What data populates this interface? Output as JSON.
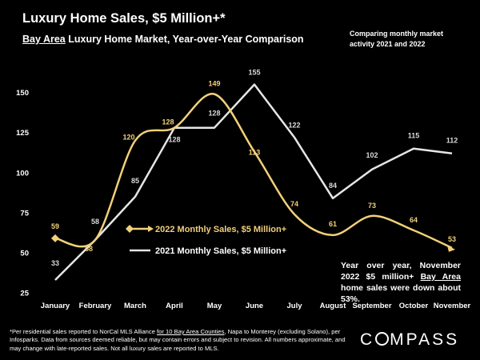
{
  "header": {
    "title": "Luxury Home Sales, $5 Million+*",
    "subtitle_region": "Bay Area",
    "subtitle_rest": " Luxury Home Market, Year-over-Year Comparison",
    "corner_note": "Comparing monthly market activity 2021 and 2022"
  },
  "chart_data": {
    "type": "line",
    "categories": [
      "January",
      "February",
      "March",
      "April",
      "May",
      "June",
      "July",
      "August",
      "September",
      "October",
      "November"
    ],
    "ylim": [
      25,
      160
    ],
    "yticks": [
      25,
      50,
      75,
      100,
      125,
      150
    ],
    "grid": false,
    "series": [
      {
        "name": "2022 Monthly Sales, $5 Million+",
        "color": "#F2D07A",
        "values": [
          59,
          58,
          120,
          128,
          149,
          113,
          74,
          61,
          73,
          64,
          53
        ]
      },
      {
        "name": "2021 Monthly Sales, $5 Million+",
        "color": "#E6E6E6",
        "values": [
          33,
          58,
          85,
          128,
          128,
          155,
          122,
          84,
          102,
          115,
          112
        ]
      }
    ]
  },
  "yoy_note": {
    "pre": "Year over year, November 2022 $5 million+ ",
    "region": "Bay Area",
    "post": " home sales were down about 53%."
  },
  "footnote": {
    "pre": "*Per residential sales reported to NorCal MLS Alliance ",
    "link": "for 10 Bay Area Counties",
    "post": ", Napa to Monterey (excluding Solano), per Infosparks. Data from sources deemed reliable, but may contain errors and subject to revision. All numbers approximate, and may change with late-reported sales. Not all luxury sales are reported to MLS."
  },
  "brand": {
    "pre": "C",
    "post": "MPASS"
  }
}
